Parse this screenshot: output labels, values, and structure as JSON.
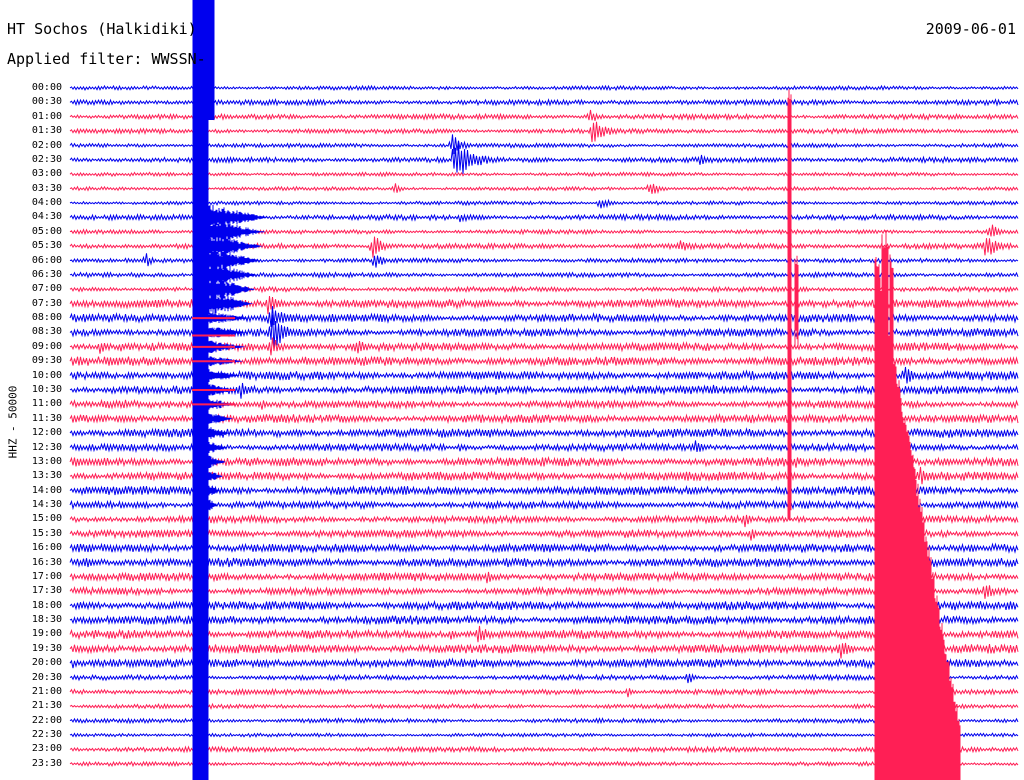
{
  "header": {
    "station": "HT Sochos (Halkidiki)",
    "filter": "Applied filter: WWSSN-",
    "date": "2009-06-01"
  },
  "channel_label": "HHZ - 50000",
  "colors": {
    "trace_a": "#0000ee",
    "trace_b": "#ff1f55",
    "text": "#000000",
    "background": "#ffffff"
  },
  "time_labels": [
    "00:00",
    "00:30",
    "01:00",
    "01:30",
    "02:00",
    "02:30",
    "03:00",
    "03:30",
    "04:00",
    "04:30",
    "05:00",
    "05:30",
    "06:00",
    "06:30",
    "07:00",
    "07:30",
    "08:00",
    "08:30",
    "09:00",
    "09:30",
    "10:00",
    "10:30",
    "11:00",
    "11:30",
    "12:00",
    "12:30",
    "13:00",
    "13:30",
    "14:00",
    "14:30",
    "15:00",
    "15:30",
    "16:00",
    "16:30",
    "17:00",
    "17:30",
    "18:00",
    "18:30",
    "19:00",
    "19:30",
    "20:00",
    "20:30",
    "21:00",
    "21:30",
    "22:00",
    "22:30",
    "23:00",
    "23:30"
  ]
}
